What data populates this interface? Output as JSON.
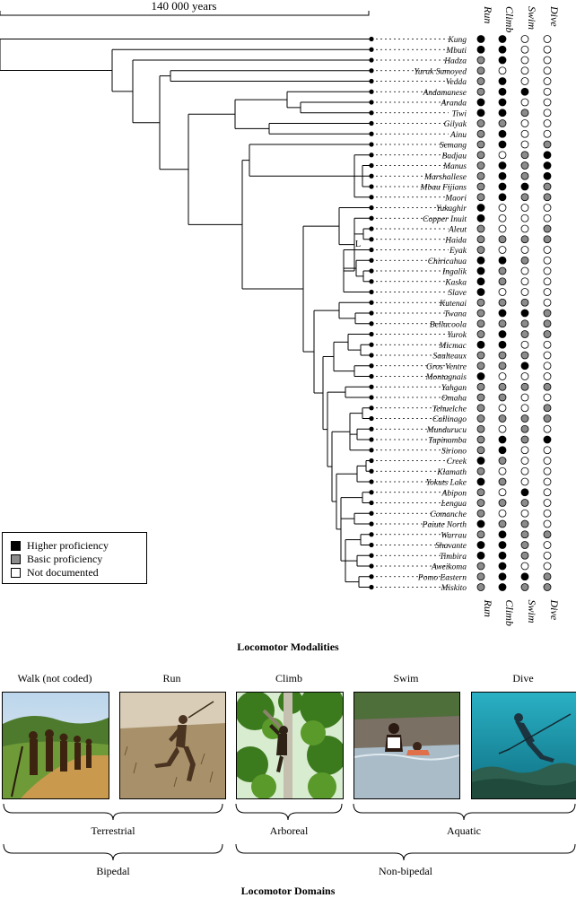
{
  "scale_label": "140 000 years",
  "columns": [
    "Run",
    "Climb",
    "Swim",
    "Dive"
  ],
  "legend": [
    {
      "label": "Higher proficiency",
      "color": "#000000"
    },
    {
      "label": "Basic proficiency",
      "color": "#8c8c8c"
    },
    {
      "label": "Not documented",
      "color": "#ffffff"
    }
  ],
  "node_marker": "L",
  "taxa": [
    {
      "name": "Kung",
      "traits": "BBWW"
    },
    {
      "name": "Mbuti",
      "traits": "BBWW"
    },
    {
      "name": "Hadza",
      "traits": "GBWW"
    },
    {
      "name": "Yurak Samoyed",
      "traits": "GWWW"
    },
    {
      "name": "Vedda",
      "traits": "GBWW"
    },
    {
      "name": "Andamanese",
      "traits": "GBBW"
    },
    {
      "name": "Aranda",
      "traits": "BBWW"
    },
    {
      "name": "Tiwi",
      "traits": "BBGW"
    },
    {
      "name": "Gilyak",
      "traits": "GGWW"
    },
    {
      "name": "Ainu",
      "traits": "GBWW"
    },
    {
      "name": "Semang",
      "traits": "GBWG"
    },
    {
      "name": "Badjau",
      "traits": "GWGB"
    },
    {
      "name": "Manus",
      "traits": "GBGB"
    },
    {
      "name": "Marshallese",
      "traits": "GBGB"
    },
    {
      "name": "Mbau Fijians",
      "traits": "GBBG"
    },
    {
      "name": "Maori",
      "traits": "GBGG"
    },
    {
      "name": "Yukaghir",
      "traits": "BWWW"
    },
    {
      "name": "Copper Inuit",
      "traits": "BWWW"
    },
    {
      "name": "Aleut",
      "traits": "GWWG"
    },
    {
      "name": "Haida",
      "traits": "GGGG"
    },
    {
      "name": "Eyak",
      "traits": "GWWW"
    },
    {
      "name": "Chiricahua",
      "traits": "BBGW"
    },
    {
      "name": "Ingalik",
      "traits": "BGWW"
    },
    {
      "name": "Kaska",
      "traits": "BGWW"
    },
    {
      "name": "Slave",
      "traits": "BWWW"
    },
    {
      "name": "Kutenai",
      "traits": "GGGW"
    },
    {
      "name": "Twana",
      "traits": "GBBG"
    },
    {
      "name": "Bellacoola",
      "traits": "GGGG"
    },
    {
      "name": "Yurok",
      "traits": "GBGG"
    },
    {
      "name": "Micmac",
      "traits": "BBWW"
    },
    {
      "name": "Saulteaux",
      "traits": "GGGW"
    },
    {
      "name": "Gros Ventre",
      "traits": "GGBW"
    },
    {
      "name": "Montagnais",
      "traits": "BWWW"
    },
    {
      "name": "Yahgan",
      "traits": "GGGG"
    },
    {
      "name": "Omaha",
      "traits": "GGWW"
    },
    {
      "name": "Tehuelche",
      "traits": "GWWG"
    },
    {
      "name": "Callinago",
      "traits": "GGGG"
    },
    {
      "name": "Mundurucu",
      "traits": "GWGW"
    },
    {
      "name": "Tupinamba",
      "traits": "GBGB"
    },
    {
      "name": "Siriono",
      "traits": "GBWW"
    },
    {
      "name": "Creek",
      "traits": "BGWW"
    },
    {
      "name": "Klamath",
      "traits": "GWWW"
    },
    {
      "name": "Yokuts Lake",
      "traits": "BGWW"
    },
    {
      "name": "Abipon",
      "traits": "GWBW"
    },
    {
      "name": "Lengua",
      "traits": "GGGW"
    },
    {
      "name": "Comanche",
      "traits": "GWWW"
    },
    {
      "name": "Paiute North",
      "traits": "BGGW"
    },
    {
      "name": "Warrau",
      "traits": "GBGG"
    },
    {
      "name": "Shavante",
      "traits": "BBGW"
    },
    {
      "name": "Timbira",
      "traits": "BBGW"
    },
    {
      "name": "Aweikoma",
      "traits": "GBWW"
    },
    {
      "name": "Pomo Eastern",
      "traits": "GBBG"
    },
    {
      "name": "Miskito",
      "traits": "GBGG"
    }
  ],
  "modalities_title": "Locomotor Modalities",
  "photos": [
    {
      "label": "Walk (not coded)",
      "subject": "walking-group-photo"
    },
    {
      "label": "Run",
      "subject": "running-man-photo"
    },
    {
      "label": "Climb",
      "subject": "tree-climber-photo"
    },
    {
      "label": "Swim",
      "subject": "swimmers-photo"
    },
    {
      "label": "Dive",
      "subject": "underwater-diver-photo"
    }
  ],
  "habitats": [
    "Terrestrial",
    "Arboreal",
    "Aquatic"
  ],
  "postures": [
    "Bipedal",
    "Non-bipedal"
  ],
  "domains_title": "Locomotor Domains"
}
